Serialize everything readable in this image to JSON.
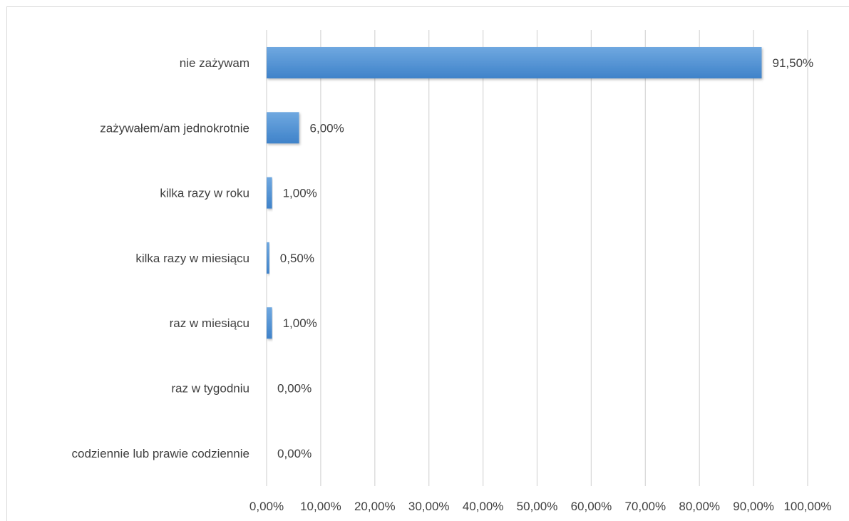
{
  "chart_data": {
    "type": "bar",
    "orientation": "horizontal",
    "title": "",
    "xlabel": "",
    "ylabel": "",
    "categories": [
      "nie zażywam",
      "zażywałem/am  jednokrotnie",
      "kilka razy w roku",
      "kilka razy w miesiącu",
      "raz w miesiącu",
      "raz w tygodniu",
      "codziennie lub prawie codziennie"
    ],
    "values": [
      91.5,
      6.0,
      1.0,
      0.5,
      1.0,
      0.0,
      0.0
    ],
    "data_labels": [
      "91,50%",
      "6,00%",
      "1,00%",
      "0,50%",
      "1,00%",
      "0,00%",
      "0,00%"
    ],
    "xlim": [
      0,
      100
    ],
    "x_ticks": [
      0,
      10,
      20,
      30,
      40,
      50,
      60,
      70,
      80,
      90,
      100
    ],
    "x_tick_labels": [
      "0,00%",
      "10,00%",
      "20,00%",
      "30,00%",
      "40,00%",
      "50,00%",
      "60,00%",
      "70,00%",
      "80,00%",
      "90,00%",
      "100,00%"
    ],
    "grid": true,
    "legend": "none",
    "colors": {
      "bar_top": "#6fa8e0",
      "bar_bottom": "#3f82c9",
      "grid": "#d9d9d9",
      "text": "#404040"
    }
  }
}
